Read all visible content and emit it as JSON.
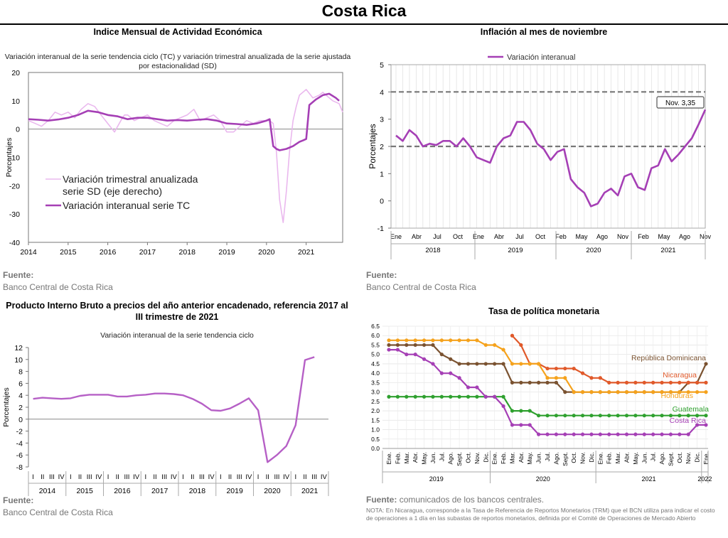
{
  "page_title": "Costa Rica",
  "panels": {
    "imae": {
      "title": "Indice Mensual de  Actividad Económica",
      "subtitle": "Variación interanual de la serie tendencia ciclo (TC) y variación trimestral anualizada de la serie ajustada por estacionalidad (SD)",
      "source_label": "Fuente:",
      "source_text": "Banco Central de Costa Rica"
    },
    "inflation": {
      "title": "Inflación al mes de noviembre",
      "source_label": "Fuente:",
      "source_text": "Banco Central de Costa Rica"
    },
    "pib": {
      "title": "Producto Interno Bruto a precios del año anterior encadenado, referencia 2017 al III trimestre de 2021",
      "subtitle": "Variación interanual de la serie tendencia ciclo",
      "source_label": "Fuente:",
      "source_text": "Banco Central de Costa Rica"
    },
    "tpm": {
      "title": "Tasa de política monetaria",
      "source_label": "Fuente:",
      "source_text": "comunicados de los bancos centrales.",
      "note": "NOTA: En Nicaragua, corresponde a la Tasa de Referencia de Reportos Monetarios (TRM) que el BCN utiliza para indicar el costo de operaciones a 1 día en las subastas de reportos monetarios, definida por el Comité de Operaciones de Mercado Abierto"
    }
  },
  "chart_data": [
    {
      "id": "imae",
      "type": "line",
      "ylabel": "Porcentajes",
      "ylim": [
        -40,
        20
      ],
      "yticks": [
        -40,
        -30,
        -20,
        -10,
        0,
        10,
        20
      ],
      "xlim": [
        2014,
        2021.92
      ],
      "xticks": [
        2014,
        2015,
        2016,
        2017,
        2018,
        2019,
        2020,
        2021
      ],
      "legend_position": "lower-left",
      "series": [
        {
          "name": "Variación trimestral anualizada serie SD (eje derecho)",
          "color": "#eab8ee",
          "x": [
            2014.0,
            2014.17,
            2014.33,
            2014.5,
            2014.67,
            2014.83,
            2015.0,
            2015.17,
            2015.33,
            2015.5,
            2015.67,
            2015.83,
            2016.0,
            2016.17,
            2016.33,
            2016.42,
            2016.5,
            2016.67,
            2016.83,
            2017.0,
            2017.17,
            2017.33,
            2017.5,
            2017.67,
            2017.83,
            2018.0,
            2018.17,
            2018.33,
            2018.5,
            2018.67,
            2018.83,
            2019.0,
            2019.17,
            2019.33,
            2019.5,
            2019.67,
            2019.83,
            2020.0,
            2020.08,
            2020.17,
            2020.25,
            2020.33,
            2020.42,
            2020.5,
            2020.58,
            2020.67,
            2020.75,
            2020.83,
            2021.0,
            2021.17,
            2021.33,
            2021.42,
            2021.5,
            2021.67,
            2021.83,
            2021.92
          ],
          "y": [
            3,
            2,
            1,
            3,
            6,
            5,
            6,
            4,
            7,
            9,
            8,
            5,
            2,
            -1,
            3,
            5,
            5,
            3,
            4,
            5,
            3,
            2,
            1,
            3,
            4,
            5,
            7,
            3,
            4,
            5,
            3,
            -1,
            -1,
            1,
            3,
            2,
            3,
            3,
            3,
            2,
            -8,
            -25,
            -33,
            -22,
            -8,
            3,
            8,
            12,
            14,
            11,
            12,
            13,
            12,
            10,
            9,
            6
          ]
        },
        {
          "name": "Variación interanual serie TC",
          "color": "#a53fb5",
          "x": [
            2014.0,
            2014.25,
            2014.5,
            2014.75,
            2015.0,
            2015.25,
            2015.5,
            2015.75,
            2016.0,
            2016.25,
            2016.5,
            2016.75,
            2017.0,
            2017.25,
            2017.5,
            2017.75,
            2018.0,
            2018.25,
            2018.5,
            2018.75,
            2019.0,
            2019.25,
            2019.5,
            2019.75,
            2020.0,
            2020.08,
            2020.17,
            2020.25,
            2020.33,
            2020.5,
            2020.67,
            2020.83,
            2020.92,
            2021.0,
            2021.08,
            2021.25,
            2021.42,
            2021.58,
            2021.75,
            2021.83
          ],
          "y": [
            3.5,
            3.3,
            3,
            3.4,
            4,
            5,
            6.5,
            6,
            5,
            4.5,
            3.5,
            4,
            4,
            3.5,
            3,
            3.2,
            3,
            3.3,
            3.5,
            3,
            2,
            1.8,
            1.5,
            2,
            3,
            3.5,
            -6,
            -7,
            -7.5,
            -7,
            -6,
            -4.5,
            -4,
            -3.5,
            8.5,
            10.5,
            12,
            12.5,
            11,
            10
          ]
        }
      ]
    },
    {
      "id": "inflation",
      "type": "line",
      "ylabel": "Porcentajes",
      "ylim": [
        -1,
        5
      ],
      "yticks": [
        -1,
        0,
        1,
        2,
        3,
        4,
        5
      ],
      "reference_lines": [
        2,
        4
      ],
      "months": [
        "Ene",
        "Abr",
        "Jul",
        "Oct",
        "Ene",
        "Abr",
        "Jul",
        "Oct",
        "Feb",
        "May",
        "Ago",
        "Nov",
        "Feb",
        "May",
        "Ago",
        "Nov"
      ],
      "years": [
        "2018",
        "2019",
        "2020",
        "2021"
      ],
      "annotation": "Nov. 3,35",
      "series": [
        {
          "name": "Variación interanual",
          "color": "#a53fb5",
          "y": [
            2.4,
            2.2,
            2.6,
            2.4,
            2.0,
            2.1,
            2.05,
            2.2,
            2.2,
            2.0,
            2.3,
            2.0,
            1.6,
            1.5,
            1.4,
            2.0,
            2.3,
            2.4,
            2.9,
            2.9,
            2.6,
            2.1,
            1.9,
            1.5,
            1.8,
            1.9,
            0.8,
            0.5,
            0.3,
            -0.2,
            -0.1,
            0.3,
            0.45,
            0.2,
            0.9,
            1.0,
            0.5,
            0.4,
            1.2,
            1.3,
            1.9,
            1.45,
            1.7,
            2.0,
            2.3,
            2.8,
            3.35
          ]
        }
      ]
    },
    {
      "id": "pib",
      "type": "line",
      "ylabel": "Porcentajes",
      "ylim": [
        -8,
        12
      ],
      "yticks": [
        -8,
        -6,
        -4,
        -2,
        0,
        2,
        4,
        6,
        8,
        10,
        12
      ],
      "quarter_labels": [
        "I",
        "II",
        "III",
        "IV"
      ],
      "years": [
        "2014",
        "2015",
        "2016",
        "2017",
        "2018",
        "2019",
        "2020",
        "2021"
      ],
      "series": [
        {
          "name": "",
          "color": "#b660c6",
          "y": [
            3.4,
            3.6,
            3.5,
            3.4,
            3.5,
            3.9,
            4.1,
            4.1,
            4.1,
            3.8,
            3.8,
            4.0,
            4.1,
            4.3,
            4.3,
            4.2,
            4.0,
            3.4,
            2.6,
            1.5,
            1.4,
            1.8,
            2.6,
            3.5,
            1.5,
            -7.2,
            -6.0,
            -4.5,
            -1.0,
            9.9,
            10.4
          ]
        }
      ]
    },
    {
      "id": "tpm",
      "type": "line",
      "ylim": [
        0,
        6.5
      ],
      "yticks": [
        0.0,
        0.5,
        1.0,
        1.5,
        2.0,
        2.5,
        3.0,
        3.5,
        4.0,
        4.5,
        5.0,
        5.5,
        6.0,
        6.5
      ],
      "months": [
        "Ene.",
        "Feb.",
        "Mar.",
        "Abr.",
        "May.",
        "Jun.",
        "Jul.",
        "Ago.",
        "Sept.",
        "Oct.",
        "Nov.",
        "Dic.",
        "Ene.",
        "Feb.",
        "Mar.",
        "Abr.",
        "May.",
        "Jun.",
        "Jul.",
        "Ago.",
        "Sept.",
        "Oct.",
        "Nov.",
        "Dic.",
        "Ene.",
        "Feb.",
        "Mar.",
        "Abr.",
        "May.",
        "Jun.",
        "Jul.",
        "Ago.",
        "Sept.",
        "Oct.",
        "Nov.",
        "Dic.",
        "Ene."
      ],
      "years": [
        "2019",
        "2020",
        "2021",
        "2022"
      ],
      "series": [
        {
          "name": "República Dominicana",
          "color": "#7a5230",
          "y": [
            5.5,
            5.5,
            5.5,
            5.5,
            5.5,
            5.5,
            5.0,
            4.75,
            4.5,
            4.5,
            4.5,
            4.5,
            4.5,
            4.5,
            3.5,
            3.5,
            3.5,
            3.5,
            3.5,
            3.5,
            3.0,
            3.0,
            3.0,
            3.0,
            3.0,
            3.0,
            3.0,
            3.0,
            3.0,
            3.0,
            3.0,
            3.0,
            3.0,
            3.0,
            3.5,
            3.5,
            4.5
          ]
        },
        {
          "name": "Nicaragua",
          "color": "#e0592a",
          "y": [
            null,
            null,
            null,
            null,
            null,
            null,
            null,
            null,
            null,
            null,
            null,
            null,
            null,
            null,
            6.0,
            5.5,
            4.5,
            4.5,
            4.25,
            4.25,
            4.25,
            4.25,
            4.0,
            3.75,
            3.75,
            3.5,
            3.5,
            3.5,
            3.5,
            3.5,
            3.5,
            3.5,
            3.5,
            3.5,
            3.5,
            3.5,
            3.5
          ]
        },
        {
          "name": "Honduras",
          "color": "#f5a21c",
          "y": [
            5.75,
            5.75,
            5.75,
            5.75,
            5.75,
            5.75,
            5.75,
            5.75,
            5.75,
            5.75,
            5.75,
            5.5,
            5.5,
            5.25,
            4.5,
            4.5,
            4.5,
            4.5,
            3.75,
            3.75,
            3.75,
            3.0,
            3.0,
            3.0,
            3.0,
            3.0,
            3.0,
            3.0,
            3.0,
            3.0,
            3.0,
            3.0,
            3.0,
            3.0,
            3.0,
            3.0,
            3.0
          ]
        },
        {
          "name": "Guatemala",
          "color": "#2ea02e",
          "y": [
            2.75,
            2.75,
            2.75,
            2.75,
            2.75,
            2.75,
            2.75,
            2.75,
            2.75,
            2.75,
            2.75,
            2.75,
            2.75,
            2.75,
            2.0,
            2.0,
            2.0,
            1.75,
            1.75,
            1.75,
            1.75,
            1.75,
            1.75,
            1.75,
            1.75,
            1.75,
            1.75,
            1.75,
            1.75,
            1.75,
            1.75,
            1.75,
            1.75,
            1.75,
            1.75,
            1.75,
            1.75
          ]
        },
        {
          "name": "Costa Rica",
          "color": "#a53fb5",
          "y": [
            5.25,
            5.25,
            5.0,
            5.0,
            4.75,
            4.5,
            4.0,
            4.0,
            3.75,
            3.25,
            3.25,
            2.75,
            2.75,
            2.25,
            1.25,
            1.25,
            1.25,
            0.75,
            0.75,
            0.75,
            0.75,
            0.75,
            0.75,
            0.75,
            0.75,
            0.75,
            0.75,
            0.75,
            0.75,
            0.75,
            0.75,
            0.75,
            0.75,
            0.75,
            0.75,
            1.25,
            1.25
          ]
        }
      ]
    }
  ]
}
